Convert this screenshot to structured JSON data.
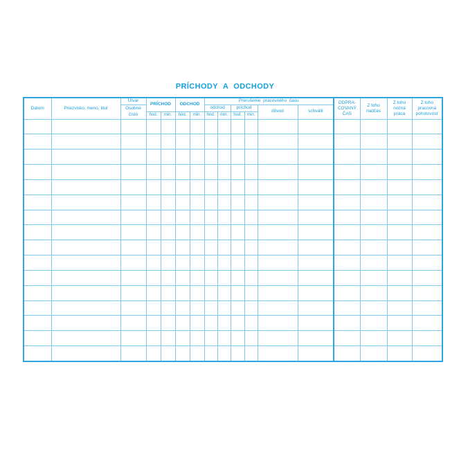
{
  "page": {
    "title": "PRÍCHODY A ODCHODY"
  },
  "colors": {
    "title": "#14a0dd",
    "header_text": "#1f9ed9",
    "grid_line": "#7ec8ec",
    "strong_line": "#2ba7e0",
    "page_background": "#ffffff"
  },
  "table": {
    "header": {
      "datum": "Dátum",
      "priezvisko": "Priezvisko, meno, titul",
      "utvar": "Útvar",
      "osobne_cislo": [
        "Osobné",
        "číslo"
      ],
      "prichod": "PRÍCHOD",
      "odchod": "ODCHOD",
      "prerusenie": "Prerušenie pracovného času",
      "prerusenie_odchod": "odchod",
      "prerusenie_prichod": "príchod",
      "hod": "hod.",
      "min": "min.",
      "dovod": "dôvod",
      "schvalil": "schválil",
      "odpracovany_cas": [
        "ODPRA-",
        "COVANÝ",
        "ČAS"
      ],
      "z_toho_nadcas": [
        "Z toho",
        "nadčas"
      ],
      "z_toho_nocna_praca": [
        "Z toho",
        "nočná",
        "práca"
      ],
      "z_toho_pohotovost": [
        "Z toho",
        "pracovná",
        "pohotovosť"
      ]
    },
    "body_row_count": 16,
    "body_cell_count": 17
  }
}
